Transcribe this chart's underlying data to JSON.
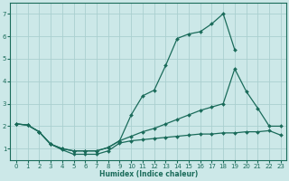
{
  "xlabel": "Humidex (Indice chaleur)",
  "bg_color": "#cce8e8",
  "grid_color": "#aacfcf",
  "line_color": "#1a6b5a",
  "xlim": [
    -0.5,
    23.5
  ],
  "ylim": [
    0.5,
    7.5
  ],
  "xticks": [
    0,
    1,
    2,
    3,
    4,
    5,
    6,
    7,
    8,
    9,
    10,
    11,
    12,
    13,
    14,
    15,
    16,
    17,
    18,
    19,
    20,
    21,
    22,
    23
  ],
  "yticks": [
    1,
    2,
    3,
    4,
    5,
    6,
    7
  ],
  "line_peak_x": [
    0,
    1,
    2,
    3,
    4,
    5,
    6,
    7,
    8,
    9,
    10,
    11,
    12,
    13,
    14,
    15,
    16,
    17,
    18,
    19
  ],
  "line_peak_y": [
    2.1,
    2.05,
    1.75,
    1.2,
    1.0,
    0.9,
    0.9,
    0.9,
    1.05,
    1.35,
    2.5,
    3.35,
    3.6,
    4.7,
    5.9,
    6.1,
    6.2,
    6.55,
    7.0,
    5.4
  ],
  "line_upper_x": [
    0,
    1,
    2,
    3,
    4,
    5,
    6,
    7,
    8,
    9,
    10,
    11,
    12,
    13,
    14,
    15,
    16,
    17,
    18,
    19,
    20,
    21,
    22,
    23
  ],
  "line_upper_y": [
    2.1,
    2.05,
    1.75,
    1.2,
    1.0,
    0.9,
    0.9,
    0.9,
    1.05,
    1.35,
    1.55,
    1.75,
    1.9,
    2.1,
    2.3,
    2.5,
    2.7,
    2.85,
    3.0,
    4.55,
    3.55,
    2.8,
    2.0,
    2.0
  ],
  "line_lower_x": [
    0,
    1,
    2,
    3,
    4,
    5,
    6,
    7,
    8,
    9,
    10,
    11,
    12,
    13,
    14,
    15,
    16,
    17,
    18,
    19,
    20,
    21,
    22,
    23
  ],
  "line_lower_y": [
    2.1,
    2.05,
    1.75,
    1.2,
    0.95,
    0.75,
    0.75,
    0.75,
    0.9,
    1.25,
    1.35,
    1.4,
    1.45,
    1.5,
    1.55,
    1.6,
    1.65,
    1.65,
    1.7,
    1.7,
    1.75,
    1.75,
    1.8,
    1.6
  ]
}
